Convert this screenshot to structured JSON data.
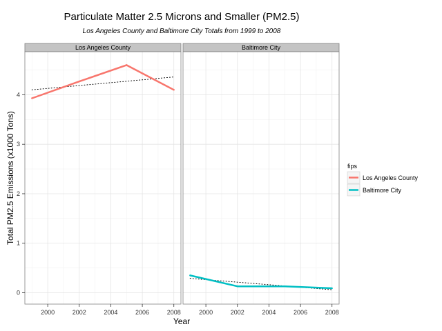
{
  "chart_data": {
    "type": "line",
    "title": "Particulate Matter 2.5 Microns and Smaller (PM2.5)",
    "subtitle": "Los Angeles County and Baltimore City Totals from 1999 to 2008",
    "xlabel": "Year",
    "ylabel": "Total PM2.5 Emissions (x1000 Tons)",
    "x": [
      1999,
      2002,
      2005,
      2008
    ],
    "xticks": [
      2000,
      2002,
      2004,
      2006,
      2008
    ],
    "xlim": [
      1998.55,
      2008.45
    ],
    "yticks": [
      0,
      1,
      2,
      3,
      4
    ],
    "ylim": [
      -0.23,
      4.87
    ],
    "grid": true,
    "legend": {
      "title": "fips",
      "position": "right"
    },
    "colors": {
      "Los Angeles County": "#f8766d",
      "Baltimore City": "#00bfc4",
      "trend": "#000000"
    },
    "panels": [
      {
        "name": "Los Angeles County",
        "series": {
          "name": "Los Angeles County",
          "x": [
            1999,
            2002,
            2005,
            2008
          ],
          "values": [
            3.93,
            4.27,
            4.6,
            4.1
          ]
        },
        "trend": {
          "x": [
            1999,
            2008
          ],
          "values": [
            4.1,
            4.36
          ]
        }
      },
      {
        "name": "Baltimore City",
        "series": {
          "name": "Baltimore City",
          "x": [
            1999,
            2002,
            2005,
            2008
          ],
          "values": [
            0.35,
            0.13,
            0.13,
            0.09
          ]
        },
        "trend": {
          "x": [
            1999,
            2008
          ],
          "values": [
            0.29,
            0.06
          ]
        }
      }
    ]
  }
}
